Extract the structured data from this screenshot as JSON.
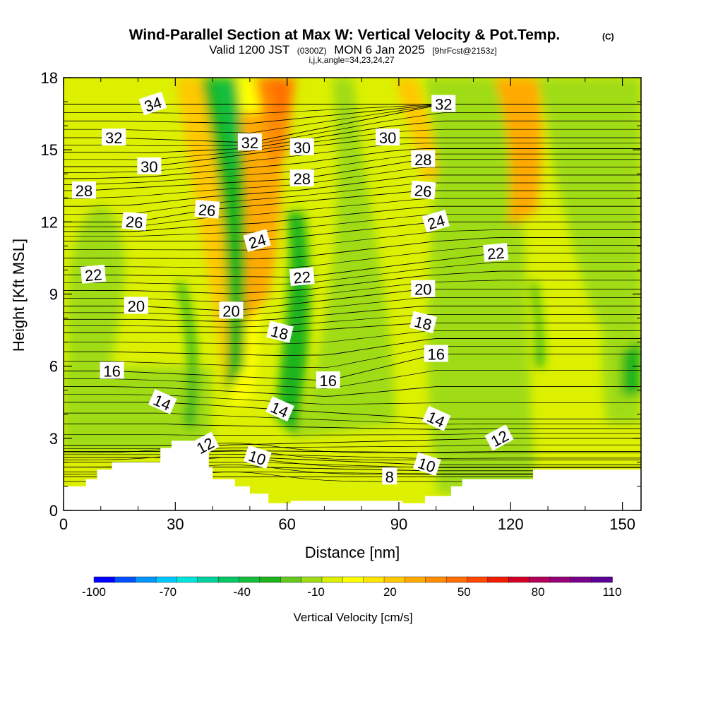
{
  "chart_data": {
    "type": "heatmap",
    "title": "Wind-Parallel Section at Max W: Vertical Velocity & Pot.Temp.",
    "copyright": "(C)",
    "subtitle": {
      "valid": "Valid 1200 JST",
      "utc": "(0300Z)",
      "date": "MON 6 Jan 2025",
      "forecast": "[9hrFcst@2153z]"
    },
    "indices": "i,j,k,angle=34,23,24,27",
    "xlabel": "Distance [nm]",
    "ylabel": "Height [Kft MSL]",
    "xlim": [
      0,
      155
    ],
    "ylim": [
      0,
      18
    ],
    "x_ticks": [
      "0",
      "30",
      "60",
      "90",
      "120",
      "150"
    ],
    "y_ticks": [
      "0",
      "3",
      "6",
      "9",
      "12",
      "15",
      "18"
    ],
    "x_tick_values": [
      0,
      30,
      60,
      90,
      120,
      150
    ],
    "y_tick_values": [
      0,
      3,
      6,
      9,
      12,
      15,
      18
    ],
    "colorbar": {
      "label": "Vertical Velocity [cm/s]",
      "tick_labels": [
        "-100",
        "-70",
        "-40",
        "-10",
        "20",
        "50",
        "80",
        "110"
      ],
      "tick_values": [
        -100,
        -70,
        -40,
        -10,
        20,
        50,
        80,
        110
      ],
      "colors": [
        "#0000ff",
        "#0050ff",
        "#0096ff",
        "#00c8ff",
        "#00e6dc",
        "#00d2a0",
        "#00c864",
        "#14be3c",
        "#1eb41e",
        "#64c81e",
        "#a0dc14",
        "#dcf000",
        "#ffff00",
        "#ffe600",
        "#ffc800",
        "#ffaa00",
        "#ff8c00",
        "#ff6e00",
        "#ff4600",
        "#f01e00",
        "#d20028",
        "#b4005a",
        "#960078",
        "#78008c",
        "#5a0096"
      ]
    },
    "contour_labels": [
      {
        "text": "34",
        "x": 24,
        "y": 16.9
      },
      {
        "text": "32",
        "x": 13.5,
        "y": 15.5
      },
      {
        "text": "32",
        "x": 50,
        "y": 15.3
      },
      {
        "text": "32",
        "x": 102,
        "y": 16.9
      },
      {
        "text": "30",
        "x": 23,
        "y": 14.3
      },
      {
        "text": "30",
        "x": 64,
        "y": 15.1
      },
      {
        "text": "30",
        "x": 87,
        "y": 15.5
      },
      {
        "text": "28",
        "x": 5.5,
        "y": 13.3
      },
      {
        "text": "28",
        "x": 64,
        "y": 13.8
      },
      {
        "text": "28",
        "x": 96.5,
        "y": 14.6
      },
      {
        "text": "26",
        "x": 19,
        "y": 12.0
      },
      {
        "text": "26",
        "x": 38.5,
        "y": 12.5
      },
      {
        "text": "26",
        "x": 96.5,
        "y": 13.3
      },
      {
        "text": "24",
        "x": 52,
        "y": 11.2
      },
      {
        "text": "24",
        "x": 100,
        "y": 12.0
      },
      {
        "text": "22",
        "x": 8,
        "y": 9.8
      },
      {
        "text": "22",
        "x": 64,
        "y": 9.7
      },
      {
        "text": "22",
        "x": 116,
        "y": 10.7
      },
      {
        "text": "20",
        "x": 19.5,
        "y": 8.5
      },
      {
        "text": "20",
        "x": 45,
        "y": 8.3
      },
      {
        "text": "20",
        "x": 96.5,
        "y": 9.2
      },
      {
        "text": "18",
        "x": 58,
        "y": 7.4
      },
      {
        "text": "18",
        "x": 96.5,
        "y": 7.8
      },
      {
        "text": "16",
        "x": 13,
        "y": 5.8
      },
      {
        "text": "16",
        "x": 71,
        "y": 5.4
      },
      {
        "text": "16",
        "x": 100,
        "y": 6.5
      },
      {
        "text": "14",
        "x": 26.5,
        "y": 4.5
      },
      {
        "text": "14",
        "x": 58,
        "y": 4.2
      },
      {
        "text": "14",
        "x": 100,
        "y": 3.8
      },
      {
        "text": "12",
        "x": 38,
        "y": 2.7
      },
      {
        "text": "12",
        "x": 117,
        "y": 3.0
      },
      {
        "text": "10",
        "x": 52,
        "y": 2.2
      },
      {
        "text": "10",
        "x": 97.5,
        "y": 1.9
      },
      {
        "text": "8",
        "x": 87.5,
        "y": 1.4
      }
    ]
  }
}
